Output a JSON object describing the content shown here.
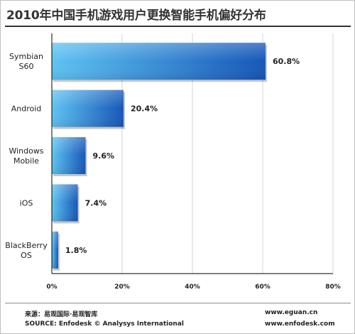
{
  "chart_data": {
    "type": "bar",
    "orientation": "horizontal",
    "title": "2010年中国手机游戏用户更换智能手机偏好分布",
    "categories": [
      [
        "Symbian",
        "S60"
      ],
      [
        "Android"
      ],
      [
        "Windows",
        "Mobile"
      ],
      [
        "iOS"
      ],
      [
        "BlackBerry",
        "OS"
      ]
    ],
    "values": [
      60.8,
      20.4,
      9.6,
      7.4,
      1.8
    ],
    "value_labels": [
      "60.8%",
      "20.4%",
      "9.6%",
      "7.4%",
      "1.8%"
    ],
    "xlim": [
      0,
      80
    ],
    "xticks": [
      0,
      20,
      40,
      60,
      80
    ],
    "xtick_labels": [
      "0%",
      "20%",
      "40%",
      "60%",
      "80%"
    ],
    "grid": "vertical",
    "legend": "none",
    "colors": {
      "bar_light": "#5ec3f2",
      "bar_dark": "#1656b7",
      "grid": "#d4d4d4",
      "axis": "#000000"
    }
  },
  "footer": {
    "source_cn": "来源：易观国际·易观智库",
    "source_en": "SOURCE: Enfodesk © Analysys International",
    "url1": "www.eguan.cn",
    "url2": "www.enfodesk.com"
  }
}
